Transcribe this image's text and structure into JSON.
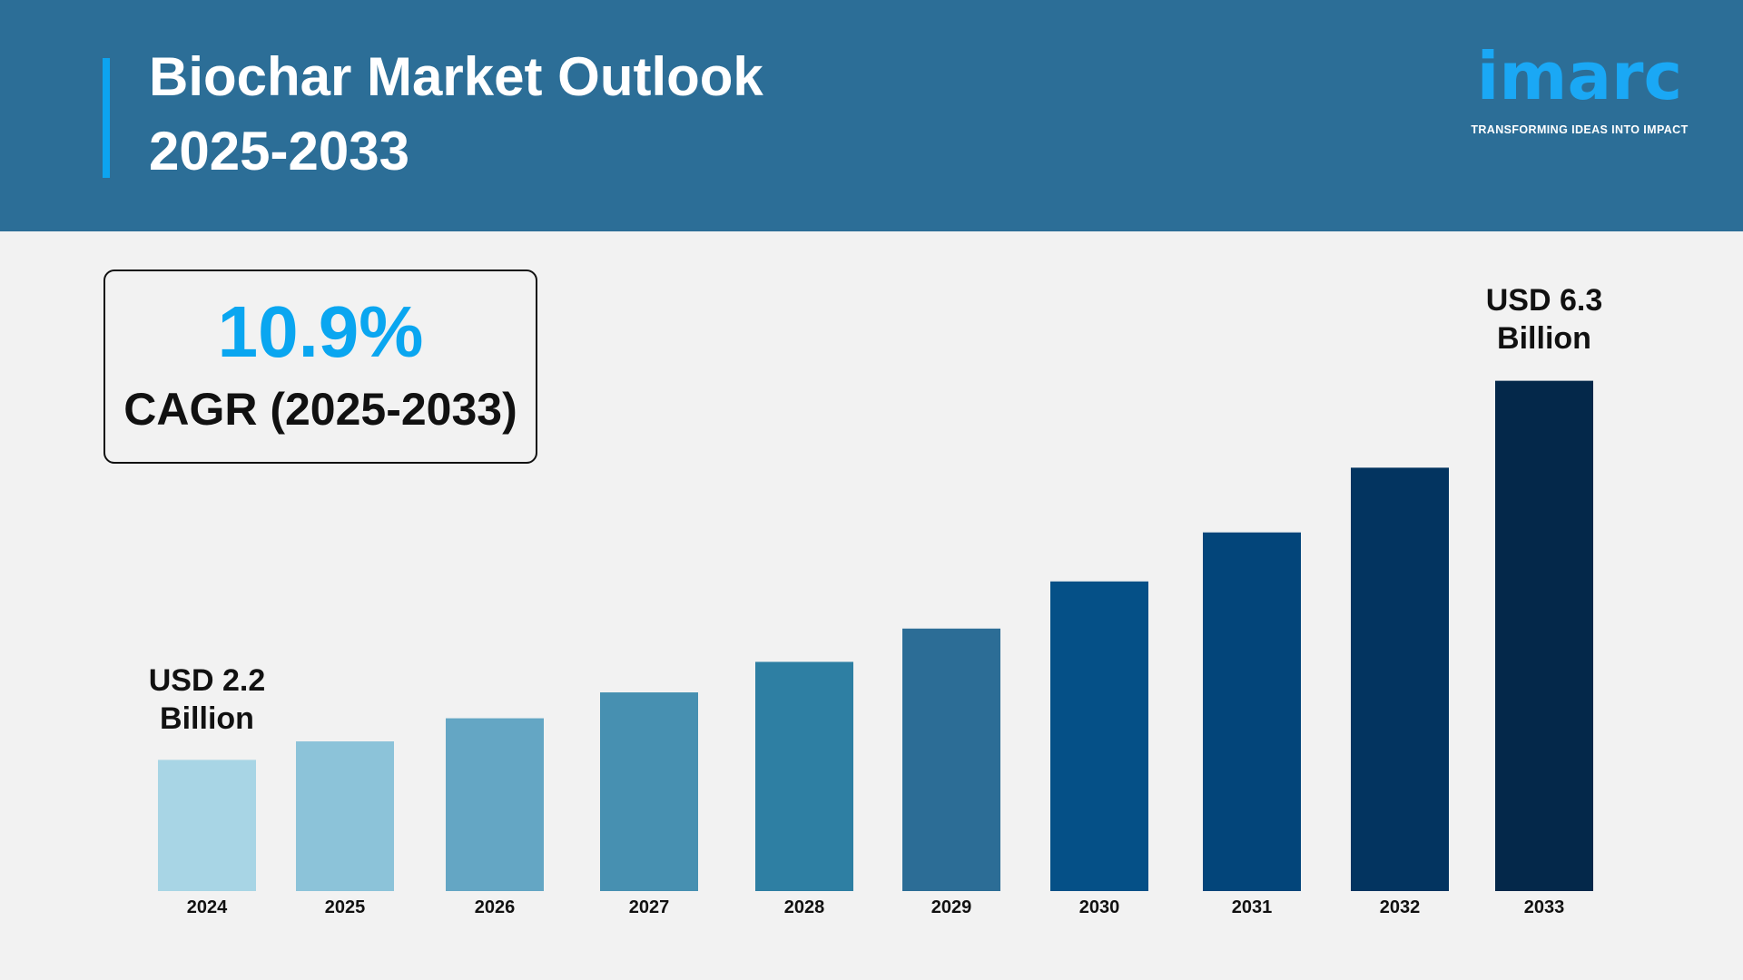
{
  "header": {
    "title_line1": "Biochar Market Outlook",
    "title_line2": "2025-2033",
    "logo_word": "imarc",
    "logo_tagline": "TRANSFORMING IDEAS INTO IMPACT",
    "bg_color": "#2c6e97"
  },
  "cagr": {
    "value": "10.9%",
    "label": "CAGR (2025-2033)"
  },
  "labels": {
    "start_line1": "USD 2.2",
    "start_line2": "Billion",
    "end_line1": "USD 6.3",
    "end_line2": "Billion"
  },
  "chart_data": {
    "type": "bar",
    "categories": [
      "2024",
      "2025",
      "2026",
      "2027",
      "2028",
      "2029",
      "2030",
      "2031",
      "2032",
      "2033"
    ],
    "values": [
      2.2,
      2.4,
      2.65,
      2.93,
      3.26,
      3.62,
      4.13,
      4.66,
      5.36,
      6.3
    ],
    "unit": "USD Billion",
    "colors": [
      "#a8d5e5",
      "#8cc3d9",
      "#64a6c4",
      "#4790b1",
      "#2e7fa3",
      "#2c6d96",
      "#055087",
      "#03457a",
      "#033460",
      "#04284a"
    ],
    "xlabel": "",
    "ylabel": "",
    "grid": false,
    "legend": "none"
  }
}
